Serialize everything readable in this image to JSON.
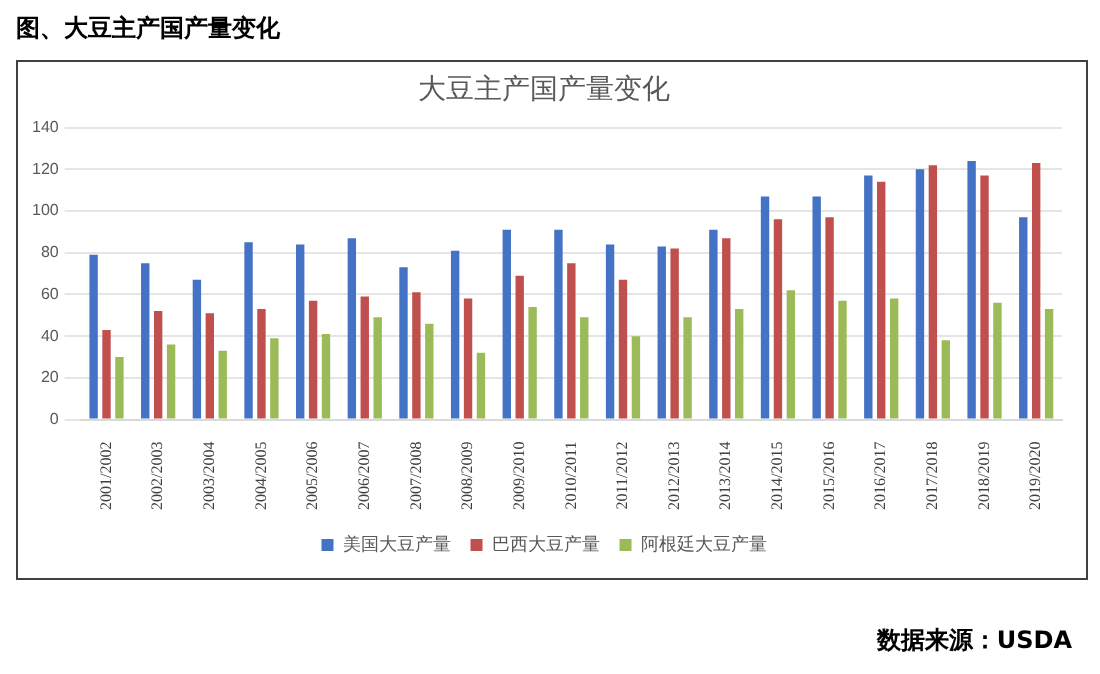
{
  "chart_data": {
    "type": "bar",
    "title": "图、大豆主产国产量变化",
    "subtitle": "大豆主产国产量变化",
    "categories": [
      "2001/2002",
      "2002/2003",
      "2003/2004",
      "2004/2005",
      "2005/2006",
      "2006/2007",
      "2007/2008",
      "2008/2009",
      "2009/2010",
      "2010/2011",
      "2011/2012",
      "2012/2013",
      "2013/2014",
      "2014/2015",
      "2015/2016",
      "2016/2017",
      "2017/2018",
      "2018/2019",
      "2019/2020"
    ],
    "series": [
      {
        "name": "美国大豆产量",
        "color": "#4472c4",
        "values": [
          79,
          75,
          67,
          85,
          84,
          87,
          73,
          81,
          91,
          91,
          84,
          83,
          91,
          107,
          107,
          117,
          120,
          124,
          97
        ]
      },
      {
        "name": "巴西大豆产量",
        "color": "#c0504d",
        "values": [
          43,
          52,
          51,
          53,
          57,
          59,
          61,
          58,
          69,
          75,
          67,
          82,
          87,
          96,
          97,
          114,
          122,
          117,
          123
        ]
      },
      {
        "name": "阿根廷大豆产量",
        "color": "#9bbb59",
        "values": [
          30,
          36,
          33,
          39,
          41,
          49,
          46,
          32,
          54,
          49,
          40,
          49,
          53,
          62,
          57,
          58,
          38,
          56,
          53
        ]
      }
    ],
    "ylim": [
      0,
      140
    ],
    "yticks": [
      0,
      20,
      40,
      60,
      80,
      100,
      120,
      140
    ],
    "grid": "y",
    "legend": "bottom",
    "annotations": [
      "数据来源：USDA"
    ]
  }
}
